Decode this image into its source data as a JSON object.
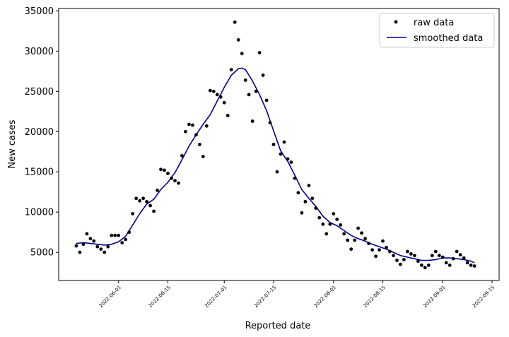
{
  "chart_data": {
    "type": "scatter",
    "xlabel": "Reported date",
    "ylabel": "New cases",
    "x_range": [
      "2022-05-15",
      "2022-09-17"
    ],
    "ylim": [
      1500,
      35300
    ],
    "y_ticks": [
      5000,
      10000,
      15000,
      20000,
      25000,
      30000,
      35000
    ],
    "y_tick_labels": [
      "5000",
      "10000",
      "15000",
      "20000",
      "25000",
      "30000",
      "35000"
    ],
    "x_ticks": [
      "2022-06-01",
      "2022-06-15",
      "2022-07-01",
      "2022-07-15",
      "2022-08-01",
      "2022-08-15",
      "2022-09-01",
      "2022-09-15"
    ],
    "x_tick_labels": [
      "2022-06-01",
      "2022-06-15",
      "2022-07-01",
      "2022-07-15",
      "2022-08-01",
      "2022-08-15",
      "2022-09-01",
      "2022-09-15"
    ],
    "grid": false,
    "legend_position": "top-right",
    "series": [
      {
        "name": "raw data",
        "kind": "scatter",
        "color": "#000000",
        "points": [
          [
            "2022-05-20",
            5800
          ],
          [
            "2022-05-21",
            5000
          ],
          [
            "2022-05-22",
            6000
          ],
          [
            "2022-05-23",
            7300
          ],
          [
            "2022-05-24",
            6700
          ],
          [
            "2022-05-25",
            6400
          ],
          [
            "2022-05-26",
            5700
          ],
          [
            "2022-05-27",
            5400
          ],
          [
            "2022-05-28",
            5000
          ],
          [
            "2022-05-29",
            5700
          ],
          [
            "2022-05-30",
            7100
          ],
          [
            "2022-05-31",
            7100
          ],
          [
            "2022-06-01",
            7100
          ],
          [
            "2022-06-02",
            6200
          ],
          [
            "2022-06-03",
            6600
          ],
          [
            "2022-06-04",
            7500
          ],
          [
            "2022-06-05",
            9800
          ],
          [
            "2022-06-06",
            11700
          ],
          [
            "2022-06-07",
            11400
          ],
          [
            "2022-06-08",
            11700
          ],
          [
            "2022-06-09",
            11300
          ],
          [
            "2022-06-10",
            10800
          ],
          [
            "2022-06-11",
            10100
          ],
          [
            "2022-06-12",
            12700
          ],
          [
            "2022-06-13",
            15300
          ],
          [
            "2022-06-14",
            15200
          ],
          [
            "2022-06-15",
            14800
          ],
          [
            "2022-06-16",
            14200
          ],
          [
            "2022-06-17",
            13900
          ],
          [
            "2022-06-18",
            13600
          ],
          [
            "2022-06-19",
            17000
          ],
          [
            "2022-06-20",
            20000
          ],
          [
            "2022-06-21",
            20900
          ],
          [
            "2022-06-22",
            20800
          ],
          [
            "2022-06-23",
            19600
          ],
          [
            "2022-06-24",
            18400
          ],
          [
            "2022-06-25",
            16900
          ],
          [
            "2022-06-26",
            20700
          ],
          [
            "2022-06-27",
            25100
          ],
          [
            "2022-06-28",
            25000
          ],
          [
            "2022-06-29",
            24600
          ],
          [
            "2022-06-30",
            24300
          ],
          [
            "2022-07-01",
            23600
          ],
          [
            "2022-07-02",
            22000
          ],
          [
            "2022-07-03",
            27700
          ],
          [
            "2022-07-04",
            33600
          ],
          [
            "2022-07-05",
            31400
          ],
          [
            "2022-07-06",
            29700
          ],
          [
            "2022-07-07",
            26400
          ],
          [
            "2022-07-08",
            24600
          ],
          [
            "2022-07-09",
            21300
          ],
          [
            "2022-07-10",
            25000
          ],
          [
            "2022-07-11",
            29800
          ],
          [
            "2022-07-12",
            27000
          ],
          [
            "2022-07-13",
            23900
          ],
          [
            "2022-07-14",
            21100
          ],
          [
            "2022-07-15",
            18400
          ],
          [
            "2022-07-16",
            15000
          ],
          [
            "2022-07-17",
            17200
          ],
          [
            "2022-07-18",
            18700
          ],
          [
            "2022-07-19",
            16600
          ],
          [
            "2022-07-20",
            16200
          ],
          [
            "2022-07-21",
            14200
          ],
          [
            "2022-07-22",
            12400
          ],
          [
            "2022-07-23",
            9900
          ],
          [
            "2022-07-24",
            11300
          ],
          [
            "2022-07-25",
            13300
          ],
          [
            "2022-07-26",
            11700
          ],
          [
            "2022-07-27",
            10500
          ],
          [
            "2022-07-28",
            9300
          ],
          [
            "2022-07-29",
            8500
          ],
          [
            "2022-07-30",
            7300
          ],
          [
            "2022-07-31",
            8500
          ],
          [
            "2022-08-01",
            9800
          ],
          [
            "2022-08-02",
            9100
          ],
          [
            "2022-08-03",
            8400
          ],
          [
            "2022-08-04",
            7300
          ],
          [
            "2022-08-05",
            6500
          ],
          [
            "2022-08-06",
            5400
          ],
          [
            "2022-08-07",
            6500
          ],
          [
            "2022-08-08",
            8000
          ],
          [
            "2022-08-09",
            7400
          ],
          [
            "2022-08-10",
            6700
          ],
          [
            "2022-08-11",
            6100
          ],
          [
            "2022-08-12",
            5300
          ],
          [
            "2022-08-13",
            4500
          ],
          [
            "2022-08-14",
            5300
          ],
          [
            "2022-08-15",
            6400
          ],
          [
            "2022-08-16",
            5600
          ],
          [
            "2022-08-17",
            5100
          ],
          [
            "2022-08-18",
            4600
          ],
          [
            "2022-08-19",
            4000
          ],
          [
            "2022-08-20",
            3500
          ],
          [
            "2022-08-21",
            4100
          ],
          [
            "2022-08-22",
            5100
          ],
          [
            "2022-08-23",
            4800
          ],
          [
            "2022-08-24",
            4600
          ],
          [
            "2022-08-25",
            3900
          ],
          [
            "2022-08-26",
            3400
          ],
          [
            "2022-08-27",
            3100
          ],
          [
            "2022-08-28",
            3400
          ],
          [
            "2022-08-29",
            4600
          ],
          [
            "2022-08-30",
            5100
          ],
          [
            "2022-08-31",
            4600
          ],
          [
            "2022-09-01",
            4400
          ],
          [
            "2022-09-02",
            3700
          ],
          [
            "2022-09-03",
            3400
          ],
          [
            "2022-09-04",
            4200
          ],
          [
            "2022-09-05",
            5100
          ],
          [
            "2022-09-06",
            4700
          ],
          [
            "2022-09-07",
            4300
          ],
          [
            "2022-09-08",
            3700
          ],
          [
            "2022-09-09",
            3400
          ],
          [
            "2022-09-10",
            3300
          ]
        ]
      },
      {
        "name": "smoothed data",
        "kind": "line",
        "color": "#00008b",
        "points": [
          [
            "2022-05-20",
            6100
          ],
          [
            "2022-05-22",
            6200
          ],
          [
            "2022-05-24",
            6100
          ],
          [
            "2022-05-26",
            6000
          ],
          [
            "2022-05-28",
            5900
          ],
          [
            "2022-05-30",
            6000
          ],
          [
            "2022-06-01",
            6300
          ],
          [
            "2022-06-03",
            7000
          ],
          [
            "2022-06-05",
            8400
          ],
          [
            "2022-06-07",
            9800
          ],
          [
            "2022-06-09",
            11000
          ],
          [
            "2022-06-11",
            11600
          ],
          [
            "2022-06-13",
            12800
          ],
          [
            "2022-06-15",
            13700
          ],
          [
            "2022-06-17",
            14900
          ],
          [
            "2022-06-19",
            16500
          ],
          [
            "2022-06-21",
            18200
          ],
          [
            "2022-06-23",
            19600
          ],
          [
            "2022-06-25",
            20900
          ],
          [
            "2022-06-27",
            22100
          ],
          [
            "2022-06-29",
            23800
          ],
          [
            "2022-07-01",
            25500
          ],
          [
            "2022-07-03",
            27000
          ],
          [
            "2022-07-05",
            27800
          ],
          [
            "2022-07-06",
            27900
          ],
          [
            "2022-07-07",
            27700
          ],
          [
            "2022-07-09",
            26300
          ],
          [
            "2022-07-11",
            24600
          ],
          [
            "2022-07-13",
            22600
          ],
          [
            "2022-07-15",
            20100
          ],
          [
            "2022-07-17",
            17600
          ],
          [
            "2022-07-19",
            16300
          ],
          [
            "2022-07-21",
            14600
          ],
          [
            "2022-07-23",
            12800
          ],
          [
            "2022-07-25",
            11700
          ],
          [
            "2022-07-27",
            10700
          ],
          [
            "2022-07-29",
            9500
          ],
          [
            "2022-07-31",
            8700
          ],
          [
            "2022-08-02",
            8300
          ],
          [
            "2022-08-04",
            7700
          ],
          [
            "2022-08-06",
            7100
          ],
          [
            "2022-08-08",
            6700
          ],
          [
            "2022-08-10",
            6400
          ],
          [
            "2022-08-12",
            6000
          ],
          [
            "2022-08-14",
            5700
          ],
          [
            "2022-08-16",
            5400
          ],
          [
            "2022-08-18",
            5000
          ],
          [
            "2022-08-20",
            4600
          ],
          [
            "2022-08-22",
            4400
          ],
          [
            "2022-08-24",
            4200
          ],
          [
            "2022-08-26",
            4000
          ],
          [
            "2022-08-28",
            4000
          ],
          [
            "2022-08-30",
            4100
          ],
          [
            "2022-09-01",
            4300
          ],
          [
            "2022-09-03",
            4300
          ],
          [
            "2022-09-05",
            4200
          ],
          [
            "2022-09-07",
            4100
          ],
          [
            "2022-09-09",
            3900
          ],
          [
            "2022-09-10",
            3700
          ]
        ]
      }
    ]
  }
}
